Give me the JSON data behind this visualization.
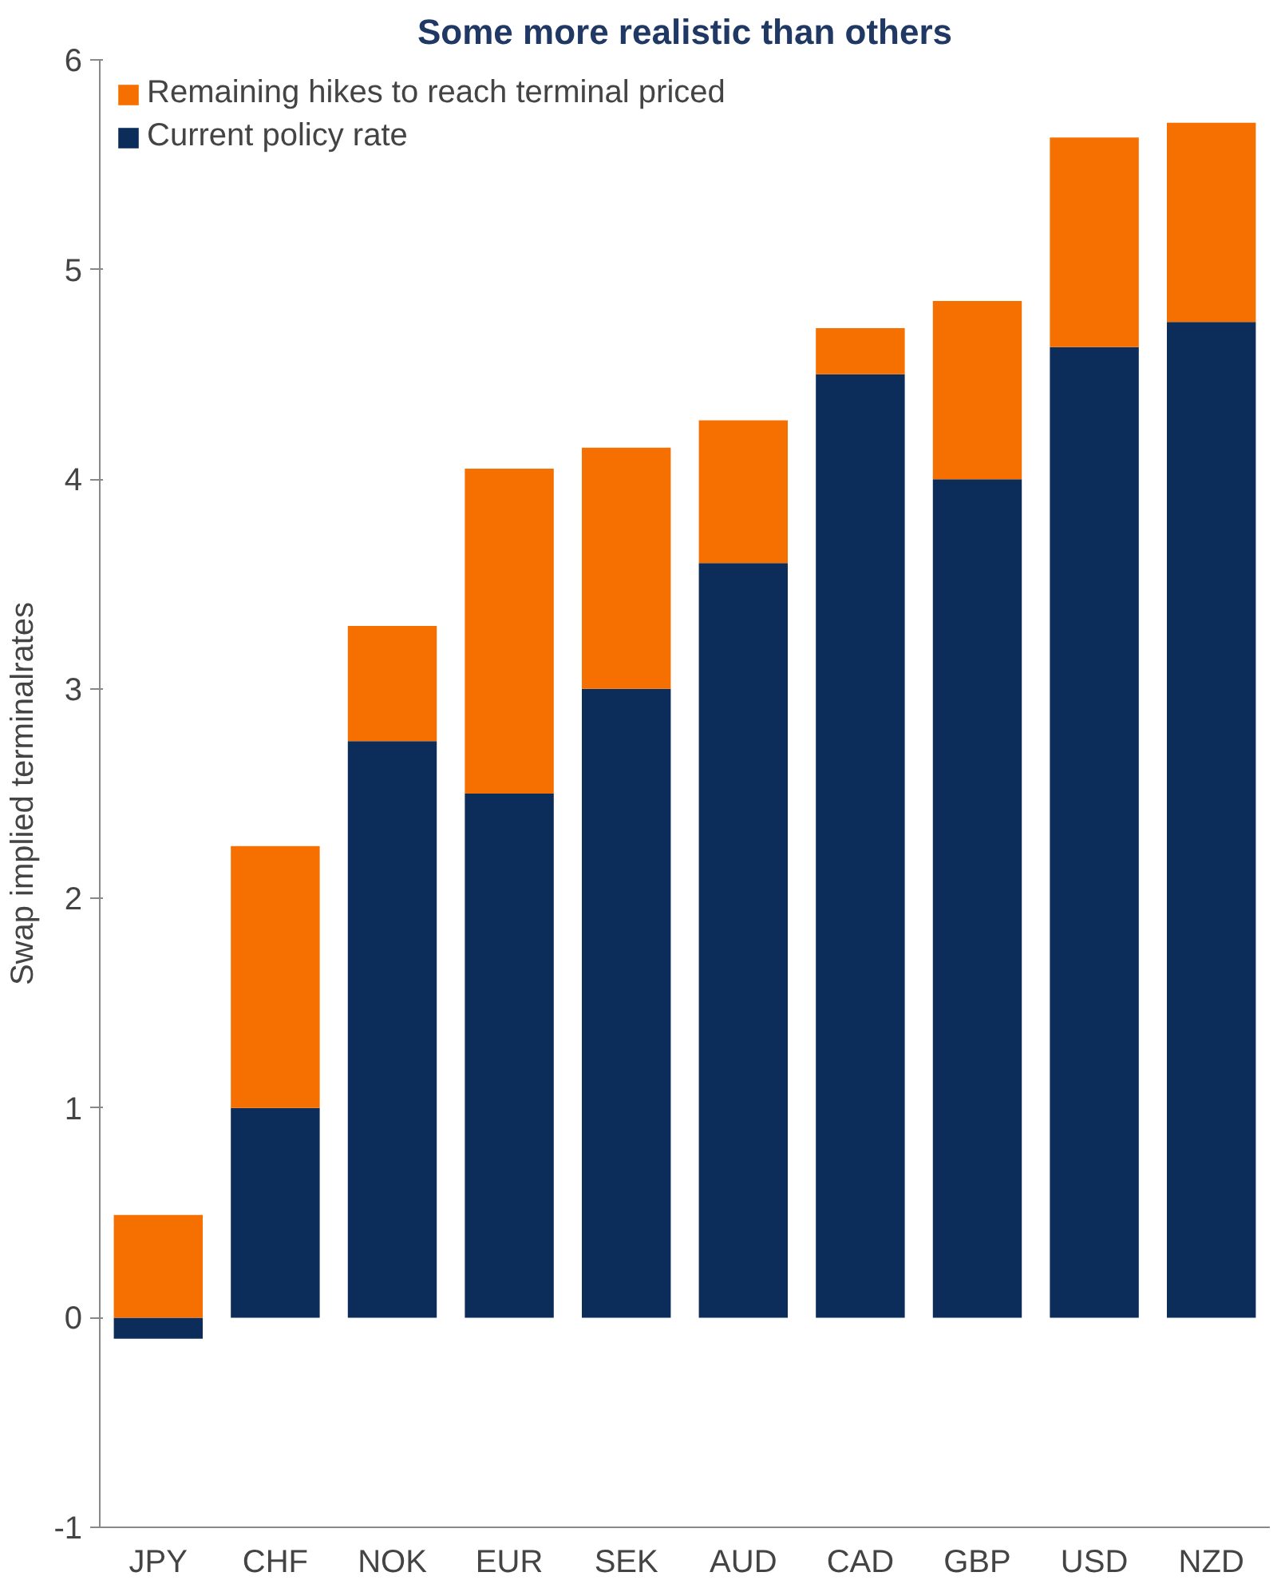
{
  "chart_data": {
    "type": "bar",
    "title": "Some more realistic than others",
    "ylabel": "Swap implied terminalrates",
    "stacked": true,
    "categories": [
      "JPY",
      "CHF",
      "NOK",
      "EUR",
      "SEK",
      "AUD",
      "CAD",
      "GBP",
      "USD",
      "NZD"
    ],
    "series": [
      {
        "name": "Current policy rate",
        "color": "#0c2d5a",
        "values": [
          -0.1,
          1.0,
          2.75,
          2.5,
          3.0,
          3.6,
          4.5,
          4.0,
          4.63,
          4.75
        ]
      },
      {
        "name": "Remaining hikes to reach terminal priced",
        "color": "#f57000",
        "values": [
          0.49,
          1.25,
          0.55,
          1.55,
          1.15,
          0.68,
          0.22,
          0.85,
          1.0,
          0.95
        ]
      }
    ],
    "ylim": [
      -1,
      6
    ],
    "yticks": [
      -1,
      0,
      1,
      2,
      3,
      4,
      5,
      6
    ],
    "grid": false,
    "legend": "top left"
  }
}
